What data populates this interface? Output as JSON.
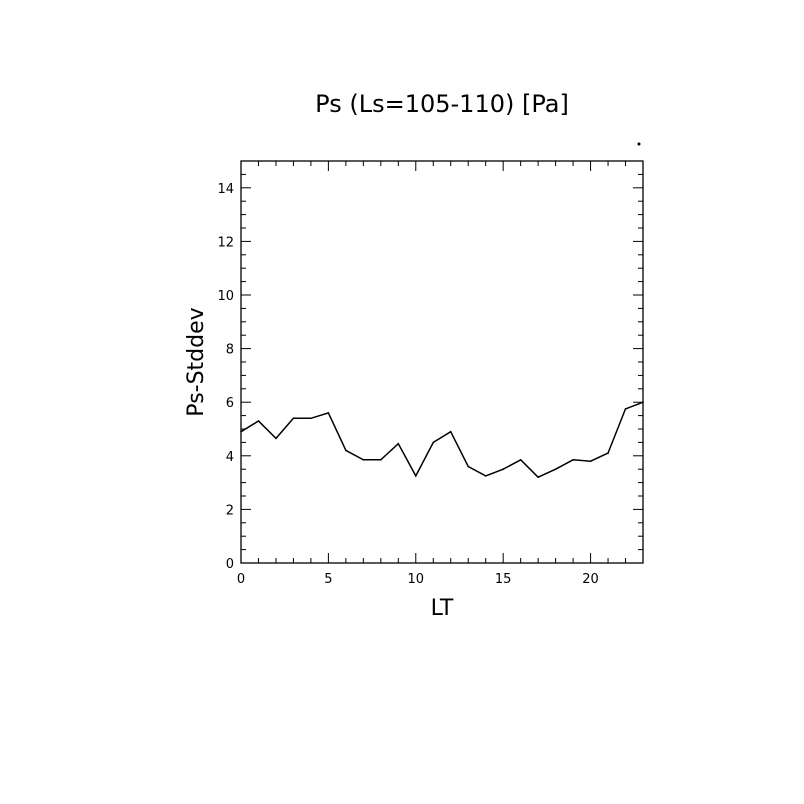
{
  "chart_data": {
    "type": "line",
    "title": "Ps (Ls=105-110) [Pa]",
    "xlabel": "LT",
    "ylabel": "Ps-Stddev",
    "xlim": [
      0,
      23
    ],
    "ylim": [
      0,
      15
    ],
    "xticks": [
      0,
      5,
      10,
      15,
      20
    ],
    "yticks": [
      0,
      2,
      4,
      6,
      8,
      10,
      12,
      14
    ],
    "grid": false,
    "series": [
      {
        "x": [
          0,
          1,
          2,
          3,
          4,
          5,
          6,
          7,
          8,
          9,
          10,
          11,
          12,
          13,
          14,
          15,
          16,
          17,
          18,
          19,
          20,
          21,
          22,
          23
        ],
        "values": [
          4.9,
          5.3,
          4.65,
          5.4,
          5.4,
          5.6,
          4.2,
          3.85,
          3.85,
          4.45,
          3.25,
          4.5,
          4.9,
          3.6,
          3.25,
          3.5,
          3.85,
          3.2,
          3.5,
          3.85,
          3.8,
          4.1,
          5.75,
          6.0
        ]
      }
    ]
  }
}
